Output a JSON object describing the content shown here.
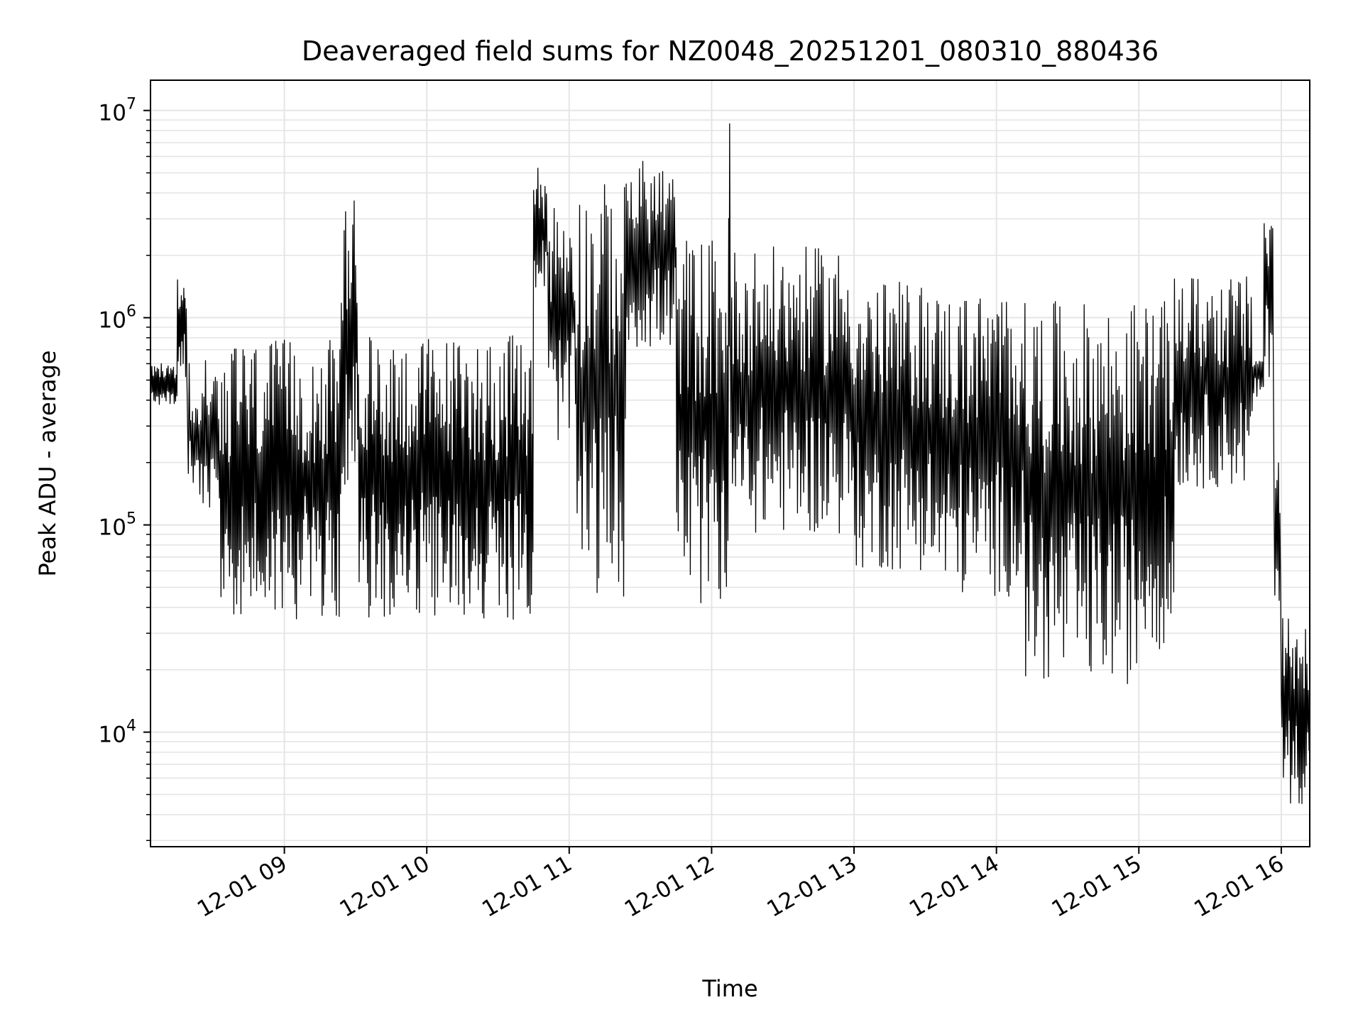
{
  "chart_data": {
    "type": "line",
    "title": "Deaveraged field sums for NZ0048_20251201_080310_880436",
    "xlabel": "Time",
    "ylabel": "Peak ADU - average",
    "x_start": "2025-12-01 08:03",
    "x_end": "2025-12-01 16:12",
    "xlim_hours": [
      8.06,
      16.2
    ],
    "ylim": [
      2800,
      14000000
    ],
    "yscale": "log",
    "grid": true,
    "line_color": "#000000",
    "x_ticks": [
      {
        "hour": 9,
        "label": "12-01 09"
      },
      {
        "hour": 10,
        "label": "12-01 10"
      },
      {
        "hour": 11,
        "label": "12-01 11"
      },
      {
        "hour": 12,
        "label": "12-01 12"
      },
      {
        "hour": 13,
        "label": "12-01 13"
      },
      {
        "hour": 14,
        "label": "12-01 14"
      },
      {
        "hour": 15,
        "label": "12-01 15"
      },
      {
        "hour": 16,
        "label": "12-01 16"
      }
    ],
    "y_ticks": [
      {
        "value": 10000,
        "base": "10",
        "exp": "4"
      },
      {
        "value": 100000,
        "base": "10",
        "exp": "5"
      },
      {
        "value": 1000000,
        "base": "10",
        "exp": "6"
      },
      {
        "value": 10000000,
        "base": "10",
        "exp": "7"
      }
    ],
    "series": [
      {
        "segments": [
          {
            "t0": 8.06,
            "t1": 8.25,
            "low": 380000,
            "high": 600000,
            "n": 40
          },
          {
            "t0": 8.25,
            "t1": 8.32,
            "low": 500000,
            "high": 1600000,
            "n": 16
          },
          {
            "t0": 8.32,
            "t1": 8.55,
            "low": 120000,
            "high": 650000,
            "n": 40
          },
          {
            "t0": 8.55,
            "t1": 9.4,
            "low": 35000,
            "high": 780000,
            "n": 170
          },
          {
            "t0": 9.4,
            "t1": 9.52,
            "low": 150000,
            "high": 3800000,
            "n": 24
          },
          {
            "t0": 9.52,
            "t1": 10.75,
            "low": 35000,
            "high": 820000,
            "n": 250
          },
          {
            "t0": 10.75,
            "t1": 10.85,
            "low": 1300000,
            "high": 5500000,
            "n": 20
          },
          {
            "t0": 10.85,
            "t1": 11.05,
            "low": 250000,
            "high": 3800000,
            "n": 36
          },
          {
            "t0": 11.05,
            "t1": 11.4,
            "low": 45000,
            "high": 4500000,
            "n": 60
          },
          {
            "t0": 11.4,
            "t1": 11.75,
            "low": 700000,
            "high": 5800000,
            "n": 60
          },
          {
            "t0": 11.75,
            "t1": 12.12,
            "low": 40000,
            "high": 2500000,
            "n": 70
          },
          {
            "t0": 12.12,
            "t1": 12.13,
            "low": 300000,
            "high": 9200000,
            "n": 3
          },
          {
            "t0": 12.13,
            "t1": 13.0,
            "low": 90000,
            "high": 2200000,
            "n": 160
          },
          {
            "t0": 13.0,
            "t1": 13.55,
            "low": 60000,
            "high": 1500000,
            "n": 100
          },
          {
            "t0": 13.55,
            "t1": 14.2,
            "low": 45000,
            "high": 1350000,
            "n": 120
          },
          {
            "t0": 14.2,
            "t1": 15.0,
            "low": 17000,
            "high": 1200000,
            "n": 150
          },
          {
            "t0": 15.0,
            "t1": 15.25,
            "low": 25000,
            "high": 1200000,
            "n": 50
          },
          {
            "t0": 15.25,
            "t1": 15.8,
            "low": 150000,
            "high": 1600000,
            "n": 100
          },
          {
            "t0": 15.8,
            "t1": 15.88,
            "low": 400000,
            "high": 700000,
            "n": 14
          },
          {
            "t0": 15.88,
            "t1": 15.95,
            "low": 500000,
            "high": 3500000,
            "n": 14
          },
          {
            "t0": 15.95,
            "t1": 16.0,
            "low": 40000,
            "high": 200000,
            "n": 10
          },
          {
            "t0": 16.0,
            "t1": 16.2,
            "low": 4500,
            "high": 40000,
            "n": 40
          }
        ]
      }
    ]
  }
}
